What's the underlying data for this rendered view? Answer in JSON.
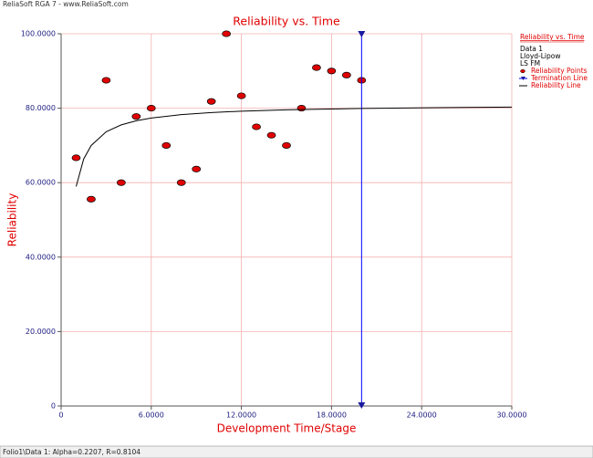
{
  "window_title": "ReliaSoft RGA 7 - www.ReliaSoft.com",
  "status_bar": "Folio1\\Data 1: Alpha=0.2207, R=0.8104",
  "chart_data": {
    "type": "scatter",
    "title": "Reliability vs. Time",
    "x_label": "Development Time/Stage",
    "y_label": "Reliability",
    "xlim": [
      0,
      30
    ],
    "ylim": [
      0,
      100
    ],
    "xticks": [
      0,
      {
        "value": 6,
        "label": "6.0000"
      },
      {
        "value": 12,
        "label": "12.0000"
      },
      {
        "value": 18,
        "label": "18.0000"
      },
      {
        "value": 24,
        "label": "24.0000"
      },
      {
        "value": 30,
        "label": "30.0000"
      }
    ],
    "yticks": [
      0,
      {
        "value": 20,
        "label": "20.0000"
      },
      {
        "value": 40,
        "label": "40.0000"
      },
      {
        "value": 60,
        "label": "60.0000"
      },
      {
        "value": 80,
        "label": "80.0000"
      },
      {
        "value": 100,
        "label": "100.0000"
      }
    ],
    "grid": true,
    "legend": {
      "position": "right",
      "title": "Reliability vs. Time",
      "lines": [
        "Data 1",
        "Lloyd-Lipow",
        "LS FM"
      ]
    },
    "series": [
      {
        "name": "Reliability Points",
        "type": "scatter",
        "color": "#e00000",
        "x": [
          1,
          2,
          3,
          4,
          5,
          6,
          7,
          8,
          9,
          10,
          11,
          12,
          13,
          14,
          15,
          16,
          17,
          18,
          19,
          20
        ],
        "values": [
          66.67,
          55.56,
          87.5,
          60,
          77.78,
          80,
          70,
          60,
          63.64,
          81.82,
          100,
          83.33,
          75,
          72.73,
          70,
          80,
          90.91,
          90,
          88.89,
          87.5
        ]
      },
      {
        "name": "Termination Line",
        "type": "vline",
        "color": "#0000ff",
        "x": 20
      },
      {
        "name": "Reliability Line",
        "type": "line",
        "color": "#000000",
        "x": [
          1,
          1.5,
          2,
          3,
          4,
          5,
          6,
          8,
          10,
          12,
          15,
          20,
          25,
          30
        ],
        "values": [
          58.97,
          66.33,
          69.98,
          73.68,
          75.52,
          76.63,
          77.36,
          78.28,
          78.83,
          79.2,
          79.57,
          79.94,
          80.16,
          80.3
        ]
      }
    ]
  }
}
